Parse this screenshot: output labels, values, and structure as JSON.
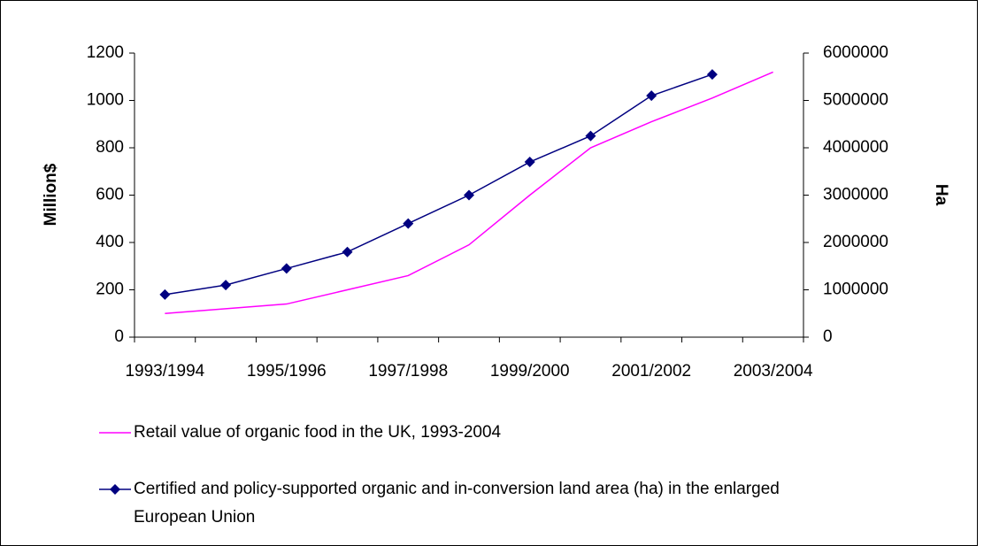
{
  "chart_data": {
    "type": "line",
    "categories": [
      "1993/1994",
      null,
      "1995/1996",
      null,
      "1997/1998",
      null,
      "1999/2000",
      null,
      "2001/2002",
      null,
      "2003/2004"
    ],
    "ylabel": "Million$",
    "y2label": "Ha",
    "ylim": [
      0,
      1200
    ],
    "yticks": [
      0,
      200,
      400,
      600,
      800,
      1000,
      1200
    ],
    "y2lim": [
      0,
      6000000
    ],
    "y2ticks": [
      0,
      1000000,
      2000000,
      3000000,
      4000000,
      5000000,
      6000000
    ],
    "series": [
      {
        "name": "Retail value of organic food in the UK, 1993-2004",
        "color": "#ff00ff",
        "values": [
          100,
          120,
          140,
          200,
          260,
          390,
          600,
          800,
          910,
          1010,
          1120
        ]
      },
      {
        "name": "Certified and policy-supported organic and in-conversion land area (ha) in the enlarged European Union",
        "color": "#000080",
        "axis": "y2",
        "marker": "diamond",
        "values": [
          900000,
          1100000,
          1450000,
          1800000,
          2400000,
          3000000,
          3700000,
          4250000,
          5100000,
          5550000,
          null
        ]
      }
    ]
  }
}
